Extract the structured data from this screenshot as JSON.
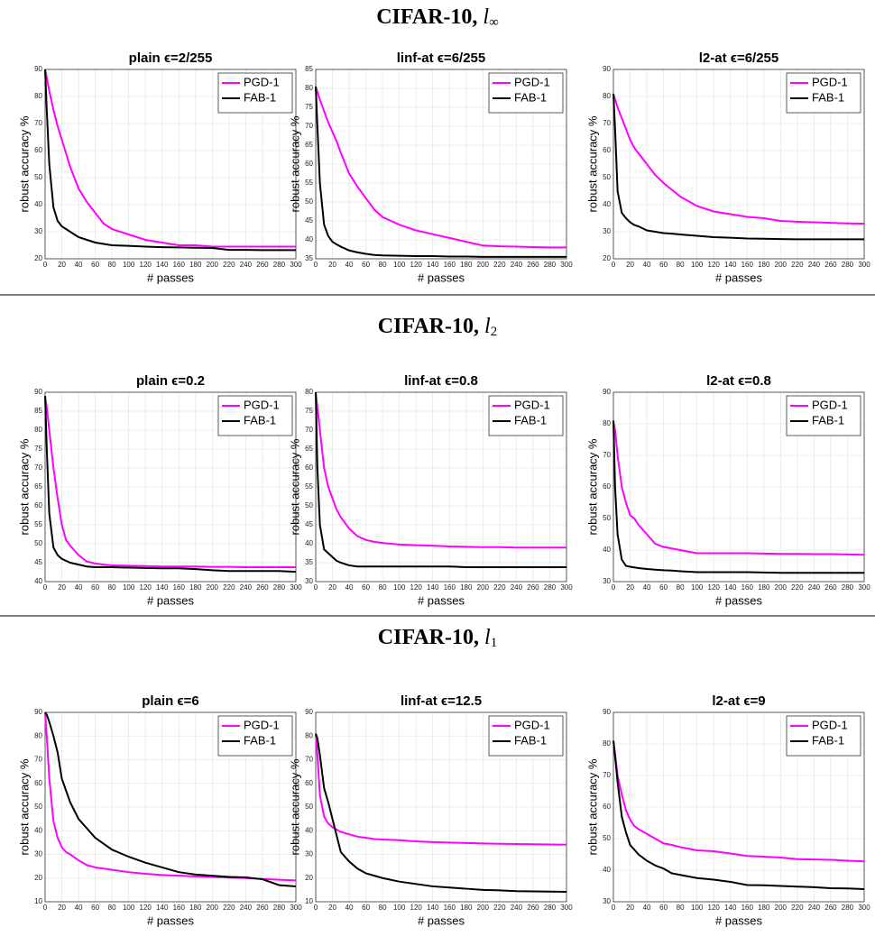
{
  "sections": [
    {
      "title": "CIFAR-10,",
      "norm": "l",
      "norm_sub": "∞"
    },
    {
      "title": "CIFAR-10,",
      "norm": "l",
      "norm_sub": "2"
    },
    {
      "title": "CIFAR-10,",
      "norm": "l",
      "norm_sub": "1"
    }
  ],
  "chart_data": [
    {
      "type": "line",
      "title": "plain ϵ=2/255",
      "xlabel": "# passes",
      "ylabel": "robust accuracy %",
      "x": [
        0,
        2,
        5,
        10,
        15,
        20,
        25,
        30,
        40,
        50,
        60,
        70,
        80,
        100,
        120,
        140,
        160,
        180,
        200,
        220,
        240,
        260,
        280,
        300
      ],
      "series": [
        {
          "name": "PGD-1",
          "color": "#ff00ff",
          "values": [
            90,
            87,
            82,
            75,
            69,
            64,
            59,
            54,
            46,
            41,
            37,
            33,
            31,
            29,
            27,
            26,
            25,
            25,
            24.5,
            24.5,
            24.5,
            24.5,
            24.5,
            24.5
          ]
        },
        {
          "name": "FAB-1",
          "color": "#000000",
          "values": [
            90,
            75,
            55,
            39,
            34,
            32,
            31,
            30,
            28,
            27,
            26,
            25.5,
            25,
            24.8,
            24.5,
            24.3,
            24.2,
            24.1,
            24,
            23.3,
            23.3,
            23.2,
            23.2,
            23.2
          ]
        }
      ],
      "xlim": [
        0,
        300
      ],
      "xticks": [
        0,
        20,
        40,
        60,
        80,
        100,
        120,
        140,
        160,
        180,
        200,
        220,
        240,
        260,
        280,
        300
      ],
      "ylim": [
        20,
        90
      ],
      "yticks": [
        20,
        30,
        40,
        50,
        60,
        70,
        80,
        90
      ],
      "grid": true,
      "legend": "upper right"
    },
    {
      "type": "line",
      "title": "linf-at ϵ=6/255",
      "xlabel": "# passes",
      "ylabel": "robust accuracy %",
      "x": [
        0,
        2,
        5,
        10,
        15,
        20,
        25,
        30,
        40,
        50,
        60,
        70,
        80,
        100,
        120,
        140,
        160,
        180,
        200,
        220,
        240,
        260,
        280,
        300
      ],
      "series": [
        {
          "name": "PGD-1",
          "color": "#ff00ff",
          "values": [
            80.5,
            79,
            77,
            74,
            71,
            68.5,
            66,
            63,
            57.5,
            54,
            51,
            48,
            46,
            44,
            42.5,
            41.5,
            40.5,
            39.5,
            38.5,
            38.3,
            38.2,
            38.1,
            38,
            38
          ]
        },
        {
          "name": "FAB-1",
          "color": "#000000",
          "values": [
            80.5,
            70,
            55,
            44,
            41,
            39.5,
            38.8,
            38.2,
            37.2,
            36.7,
            36.3,
            36,
            35.9,
            35.8,
            35.7,
            35.7,
            35.6,
            35.6,
            35.5,
            35.5,
            35.5,
            35.5,
            35.5,
            35.5
          ]
        }
      ],
      "xlim": [
        0,
        300
      ],
      "xticks": [
        0,
        20,
        40,
        60,
        80,
        100,
        120,
        140,
        160,
        180,
        200,
        220,
        240,
        260,
        280,
        300
      ],
      "ylim": [
        35,
        85
      ],
      "yticks": [
        35,
        40,
        45,
        50,
        55,
        60,
        65,
        70,
        75,
        80,
        85
      ],
      "grid": true,
      "legend": "upper right"
    },
    {
      "type": "line",
      "title": "l2-at ϵ=6/255",
      "xlabel": "# passes",
      "ylabel": "robust accuracy %",
      "x": [
        0,
        2,
        5,
        10,
        15,
        20,
        25,
        30,
        40,
        50,
        60,
        70,
        80,
        100,
        120,
        140,
        160,
        180,
        200,
        220,
        240,
        260,
        280,
        300
      ],
      "series": [
        {
          "name": "PGD-1",
          "color": "#ff00ff",
          "values": [
            81,
            79,
            76,
            72,
            68,
            64,
            61,
            59,
            55,
            51,
            48,
            45.5,
            43,
            39.5,
            37.5,
            36.5,
            35.5,
            35,
            34,
            33.7,
            33.5,
            33.3,
            33.1,
            33
          ]
        },
        {
          "name": "FAB-1",
          "color": "#000000",
          "values": [
            81,
            68,
            45,
            37,
            35,
            33.5,
            32.5,
            32,
            30.5,
            30,
            29.5,
            29.3,
            29,
            28.5,
            28,
            27.8,
            27.5,
            27.4,
            27.3,
            27.2,
            27.2,
            27.2,
            27.2,
            27.2
          ]
        }
      ],
      "xlim": [
        0,
        300
      ],
      "xticks": [
        0,
        20,
        40,
        60,
        80,
        100,
        120,
        140,
        160,
        180,
        200,
        220,
        240,
        260,
        280,
        300
      ],
      "ylim": [
        20,
        90
      ],
      "yticks": [
        20,
        30,
        40,
        50,
        60,
        70,
        80,
        90
      ],
      "grid": true,
      "legend": "upper right"
    },
    {
      "type": "line",
      "title": "plain ϵ=0.2",
      "xlabel": "# passes",
      "ylabel": "robust accuracy %",
      "x": [
        0,
        2,
        5,
        10,
        15,
        20,
        25,
        30,
        40,
        50,
        60,
        70,
        80,
        100,
        120,
        140,
        160,
        180,
        200,
        220,
        240,
        260,
        280,
        300
      ],
      "series": [
        {
          "name": "PGD-1",
          "color": "#ff00ff",
          "values": [
            89,
            86,
            80,
            70,
            62,
            55,
            51,
            49.5,
            47,
            45.3,
            44.8,
            44.5,
            44.3,
            44.2,
            44.1,
            44,
            44,
            44,
            43.9,
            43.9,
            43.8,
            43.8,
            43.8,
            43.8
          ]
        },
        {
          "name": "FAB-1",
          "color": "#000000",
          "values": [
            89,
            75,
            58,
            49,
            47,
            46,
            45.5,
            45,
            44.5,
            44,
            43.8,
            43.8,
            43.8,
            43.7,
            43.6,
            43.5,
            43.5,
            43.3,
            43,
            42.8,
            42.8,
            42.8,
            42.8,
            42.6
          ]
        }
      ],
      "xlim": [
        0,
        300
      ],
      "xticks": [
        0,
        20,
        40,
        60,
        80,
        100,
        120,
        140,
        160,
        180,
        200,
        220,
        240,
        260,
        280,
        300
      ],
      "ylim": [
        40,
        90
      ],
      "yticks": [
        40,
        45,
        50,
        55,
        60,
        65,
        70,
        75,
        80,
        85,
        90
      ],
      "grid": true,
      "legend": "upper right"
    },
    {
      "type": "line",
      "title": "linf-at ϵ=0.8",
      "xlabel": "# passes",
      "ylabel": "robust accuracy %",
      "x": [
        0,
        2,
        5,
        10,
        15,
        20,
        25,
        30,
        40,
        50,
        60,
        70,
        80,
        100,
        120,
        140,
        160,
        180,
        200,
        220,
        240,
        260,
        280,
        300
      ],
      "series": [
        {
          "name": "PGD-1",
          "color": "#ff00ff",
          "values": [
            80,
            76,
            70,
            60,
            55,
            52,
            49,
            47,
            44,
            42,
            41,
            40.5,
            40.2,
            39.8,
            39.6,
            39.5,
            39.3,
            39.2,
            39.1,
            39.1,
            39,
            39,
            39,
            39
          ]
        },
        {
          "name": "FAB-1",
          "color": "#000000",
          "values": [
            80,
            60,
            45,
            38.5,
            37.5,
            36.5,
            35.5,
            35,
            34.3,
            34,
            34,
            34,
            34,
            34,
            34,
            34,
            34,
            33.8,
            33.8,
            33.8,
            33.8,
            33.8,
            33.8,
            33.8
          ]
        }
      ],
      "xlim": [
        0,
        300
      ],
      "xticks": [
        0,
        20,
        40,
        60,
        80,
        100,
        120,
        140,
        160,
        180,
        200,
        220,
        240,
        260,
        280,
        300
      ],
      "ylim": [
        30,
        80
      ],
      "yticks": [
        30,
        35,
        40,
        45,
        50,
        55,
        60,
        65,
        70,
        75,
        80
      ],
      "grid": true,
      "legend": "upper right"
    },
    {
      "type": "line",
      "title": "l2-at ϵ=0.8",
      "xlabel": "# passes",
      "ylabel": "robust accuracy %",
      "x": [
        0,
        2,
        5,
        10,
        15,
        20,
        25,
        30,
        40,
        50,
        60,
        70,
        80,
        100,
        120,
        140,
        160,
        180,
        200,
        220,
        240,
        260,
        280,
        300
      ],
      "series": [
        {
          "name": "PGD-1",
          "color": "#ff00ff",
          "values": [
            81,
            78,
            70,
            60,
            55,
            51,
            50,
            48,
            45,
            42,
            41,
            40.5,
            40,
            39,
            39,
            39,
            39,
            38.9,
            38.8,
            38.8,
            38.7,
            38.7,
            38.6,
            38.5
          ]
        },
        {
          "name": "FAB-1",
          "color": "#000000",
          "values": [
            81,
            60,
            45,
            37,
            35,
            34.7,
            34.5,
            34.3,
            34,
            33.8,
            33.6,
            33.5,
            33.3,
            33,
            33,
            33,
            33,
            32.9,
            32.8,
            32.8,
            32.8,
            32.8,
            32.8,
            32.8
          ]
        }
      ],
      "xlim": [
        0,
        300
      ],
      "xticks": [
        0,
        20,
        40,
        60,
        80,
        100,
        120,
        140,
        160,
        180,
        200,
        220,
        240,
        260,
        280,
        300
      ],
      "ylim": [
        30,
        90
      ],
      "yticks": [
        30,
        40,
        50,
        60,
        70,
        80,
        90
      ],
      "grid": true,
      "legend": "upper right"
    },
    {
      "type": "line",
      "title": "plain ϵ=6",
      "xlabel": "# passes",
      "ylabel": "robust accuracy %",
      "x": [
        0,
        2,
        5,
        10,
        15,
        20,
        25,
        30,
        40,
        50,
        60,
        70,
        80,
        100,
        120,
        140,
        160,
        180,
        200,
        220,
        240,
        260,
        280,
        300
      ],
      "series": [
        {
          "name": "PGD-1",
          "color": "#ff00ff",
          "values": [
            90,
            80,
            62,
            44,
            37,
            33,
            31,
            30,
            27.5,
            25.5,
            24.5,
            24,
            23.5,
            22.5,
            21.8,
            21.3,
            21,
            20.7,
            20.5,
            20.2,
            20,
            19.6,
            19.3,
            19
          ]
        },
        {
          "name": "FAB-1",
          "color": "#000000",
          "values": [
            90,
            89,
            86,
            80,
            73,
            62,
            57,
            52,
            45,
            41,
            37,
            34.5,
            32,
            29,
            26.5,
            24.5,
            22.5,
            21.5,
            21,
            20.5,
            20.3,
            19.5,
            17,
            16.5
          ]
        }
      ],
      "xlim": [
        0,
        300
      ],
      "xticks": [
        0,
        20,
        40,
        60,
        80,
        100,
        120,
        140,
        160,
        180,
        200,
        220,
        240,
        260,
        280,
        300
      ],
      "ylim": [
        10,
        90
      ],
      "yticks": [
        10,
        20,
        30,
        40,
        50,
        60,
        70,
        80,
        90
      ],
      "grid": true,
      "legend": "upper right"
    },
    {
      "type": "line",
      "title": "linf-at ϵ=12.5",
      "xlabel": "# passes",
      "ylabel": "robust accuracy %",
      "x": [
        0,
        2,
        5,
        10,
        15,
        20,
        25,
        30,
        40,
        50,
        60,
        70,
        80,
        100,
        120,
        140,
        160,
        180,
        200,
        220,
        240,
        260,
        280,
        300
      ],
      "series": [
        {
          "name": "PGD-1",
          "color": "#ff00ff",
          "values": [
            81,
            72,
            55,
            46,
            43,
            41.5,
            40.5,
            39.5,
            38.5,
            37.5,
            37,
            36.5,
            36.3,
            36,
            35.5,
            35.2,
            35,
            34.8,
            34.6,
            34.5,
            34.4,
            34.3,
            34.2,
            34.1
          ]
        },
        {
          "name": "FAB-1",
          "color": "#000000",
          "values": [
            81,
            79,
            72,
            58,
            52,
            45,
            38,
            31,
            27,
            24,
            22,
            21,
            20,
            18.5,
            17.5,
            16.5,
            16,
            15.5,
            15,
            14.8,
            14.5,
            14.4,
            14.3,
            14.2
          ]
        }
      ],
      "xlim": [
        0,
        300
      ],
      "xticks": [
        0,
        20,
        40,
        60,
        80,
        100,
        120,
        140,
        160,
        180,
        200,
        220,
        240,
        260,
        280,
        300
      ],
      "ylim": [
        10,
        90
      ],
      "yticks": [
        10,
        20,
        30,
        40,
        50,
        60,
        70,
        80,
        90
      ],
      "grid": true,
      "legend": "upper right"
    },
    {
      "type": "line",
      "title": "l2-at ϵ=9",
      "xlabel": "# passes",
      "ylabel": "robust accuracy %",
      "x": [
        0,
        2,
        5,
        10,
        15,
        20,
        25,
        30,
        40,
        50,
        60,
        70,
        80,
        100,
        120,
        140,
        160,
        180,
        200,
        220,
        240,
        260,
        280,
        300
      ],
      "series": [
        {
          "name": "PGD-1",
          "color": "#ff00ff",
          "values": [
            81,
            77,
            70,
            64,
            59,
            56,
            54,
            53,
            51.5,
            50,
            48.5,
            48,
            47.3,
            46.3,
            46,
            45.3,
            44.5,
            44.3,
            44,
            43.5,
            43.4,
            43.3,
            43,
            42.8
          ]
        },
        {
          "name": "FAB-1",
          "color": "#000000",
          "values": [
            81,
            76,
            68,
            57,
            52,
            48,
            46.5,
            45,
            43,
            41.5,
            40.5,
            39,
            38.5,
            37.5,
            37,
            36.3,
            35.3,
            35.2,
            35,
            34.8,
            34.6,
            34.3,
            34.2,
            34
          ]
        }
      ],
      "xlim": [
        0,
        300
      ],
      "xticks": [
        0,
        20,
        40,
        60,
        80,
        100,
        120,
        140,
        160,
        180,
        200,
        220,
        240,
        260,
        280,
        300
      ],
      "ylim": [
        30,
        90
      ],
      "yticks": [
        30,
        40,
        50,
        60,
        70,
        80,
        90
      ],
      "grid": true,
      "legend": "upper right"
    }
  ]
}
